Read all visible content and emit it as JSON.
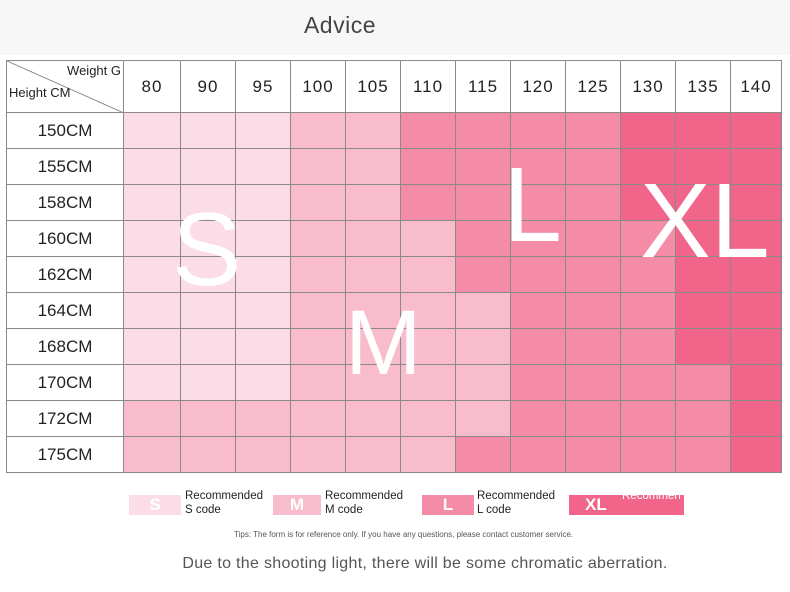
{
  "title": "Advice",
  "corner": {
    "weight_label": "Weight G",
    "height_label": "Height CM"
  },
  "weights": [
    "80",
    "90",
    "95",
    "100",
    "105",
    "110",
    "115",
    "120",
    "125",
    "130",
    "135",
    "140"
  ],
  "heights": [
    "150CM",
    "155CM",
    "158CM",
    "160CM",
    "162CM",
    "164CM",
    "168CM",
    "170CM",
    "172CM",
    "175CM"
  ],
  "palette": {
    "s": "#fbdce7",
    "m": "#f9bccd",
    "l": "#f58ca7",
    "xl": "#f1658a"
  },
  "size_grid": [
    [
      "s",
      "s",
      "s",
      "m",
      "m",
      "l",
      "l",
      "l",
      "l",
      "xl",
      "xl",
      "xl"
    ],
    [
      "s",
      "s",
      "s",
      "m",
      "m",
      "l",
      "l",
      "l",
      "l",
      "xl",
      "xl",
      "xl"
    ],
    [
      "s",
      "s",
      "s",
      "m",
      "m",
      "l",
      "l",
      "l",
      "l",
      "xl",
      "xl",
      "xl"
    ],
    [
      "s",
      "s",
      "s",
      "m",
      "m",
      "m",
      "l",
      "l",
      "l",
      "l",
      "xl",
      "xl"
    ],
    [
      "s",
      "s",
      "s",
      "m",
      "m",
      "m",
      "l",
      "l",
      "l",
      "l",
      "xl",
      "xl"
    ],
    [
      "s",
      "s",
      "s",
      "m",
      "m",
      "m",
      "m",
      "l",
      "l",
      "l",
      "xl",
      "xl"
    ],
    [
      "s",
      "s",
      "s",
      "m",
      "m",
      "m",
      "m",
      "l",
      "l",
      "l",
      "xl",
      "xl"
    ],
    [
      "s",
      "s",
      "s",
      "m",
      "m",
      "m",
      "m",
      "l",
      "l",
      "l",
      "l",
      "xl"
    ],
    [
      "m",
      "m",
      "m",
      "m",
      "m",
      "m",
      "m",
      "l",
      "l",
      "l",
      "l",
      "xl"
    ],
    [
      "m",
      "m",
      "m",
      "m",
      "m",
      "m",
      "l",
      "l",
      "l",
      "l",
      "l",
      "xl"
    ]
  ],
  "big_labels": {
    "s": "S",
    "m": "M",
    "l": "L",
    "xl": "XL"
  },
  "legend": [
    {
      "code": "S",
      "text_line1": "Recommended",
      "text_line2": "S code"
    },
    {
      "code": "M",
      "text_line1": "Recommended",
      "text_line2": "M code"
    },
    {
      "code": "L",
      "text_line1": "Recommended",
      "text_line2": "L code"
    },
    {
      "code": "XL",
      "text_line1": "Recommen",
      "text_line2": ""
    }
  ],
  "tips": "Tips: The form is for reference only. If you have any questions, please contact customer service.",
  "note": "Due to the shooting light, there will be some chromatic aberration."
}
